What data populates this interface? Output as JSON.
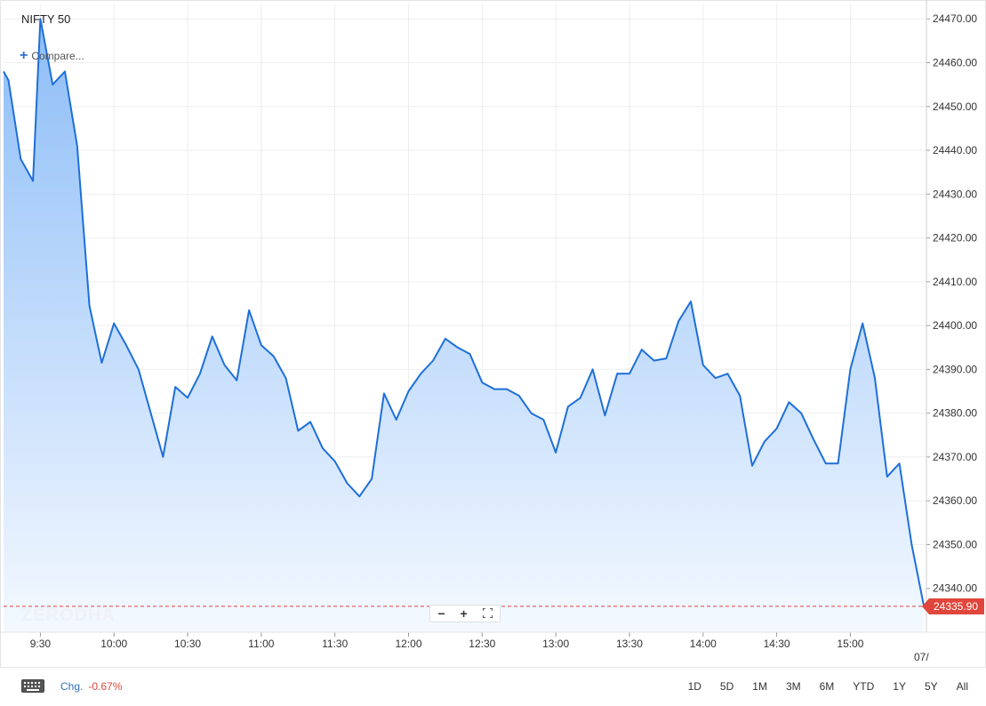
{
  "header": {
    "symbol": "NIFTY 50",
    "compare_label": "Compare..."
  },
  "watermark": "ZERODHA",
  "last_price_label": "24335.90",
  "footer": {
    "chg_label": "Chg.",
    "chg_value": "-0.67%",
    "ranges": [
      "1D",
      "5D",
      "1M",
      "3M",
      "6M",
      "YTD",
      "1Y",
      "5Y",
      "All"
    ]
  },
  "colors": {
    "line": "#1e6fd9",
    "fill_top": "#8dbdf7",
    "fill_bottom": "#f4f9ff",
    "last_price": "#e0463c",
    "grid": "#eeeeee"
  },
  "icons": {
    "keyboard": "keyboard-icon",
    "zoom_out": "minus-icon",
    "zoom_in": "plus-icon",
    "fullscreen": "fullscreen-icon"
  },
  "chart_data": {
    "type": "area",
    "ylim": [
      24330,
      24473.5
    ],
    "y_ticks": [
      24340,
      24350,
      24360,
      24370,
      24380,
      24390,
      24400,
      24410,
      24420,
      24430,
      24440,
      24450,
      24460,
      24470
    ],
    "y_tick_labels": [
      "24340.00",
      "24350.00",
      "24360.00",
      "24370.00",
      "24380.00",
      "24390.00",
      "24400.00",
      "24410.00",
      "24420.00",
      "24430.00",
      "24440.00",
      "24450.00",
      "24460.00",
      "24470.00"
    ],
    "x_unit": "minutes_of_day",
    "xlim": [
      555,
      931
    ],
    "x_ticks": [
      570,
      600,
      630,
      660,
      690,
      720,
      750,
      780,
      810,
      840,
      870,
      900
    ],
    "x_tick_labels": [
      "9:30",
      "10:00",
      "10:30",
      "11:00",
      "11:30",
      "12:00",
      "12:30",
      "13:00",
      "13:30",
      "14:00",
      "14:30",
      "15:00"
    ],
    "x_edge_label": "07/",
    "last_value": 24335.9,
    "grid": true,
    "series": [
      {
        "x": [
          555,
          557,
          562,
          567,
          570,
          575,
          580,
          585,
          590,
          595,
          600,
          605,
          610,
          615,
          620,
          625,
          630,
          635,
          640,
          645,
          650,
          655,
          660,
          665,
          670,
          675,
          680,
          685,
          690,
          695,
          700,
          705,
          710,
          715,
          720,
          725,
          730,
          735,
          740,
          745,
          750,
          755,
          760,
          765,
          770,
          775,
          780,
          785,
          790,
          795,
          800,
          805,
          810,
          815,
          820,
          825,
          830,
          835,
          840,
          845,
          850,
          855,
          860,
          865,
          870,
          875,
          880,
          885,
          890,
          895,
          900,
          905,
          910,
          915,
          920,
          925,
          930
        ],
        "y": [
          24458,
          24456,
          24438,
          24433,
          24470,
          24455,
          24458,
          24441,
          24404.5,
          24391.5,
          24400.5,
          24395.5,
          24390,
          24380,
          24370,
          24386,
          24383.5,
          24389,
          24397.5,
          24391,
          24387.5,
          24403.5,
          24395.5,
          24393,
          24388,
          24376,
          24378,
          24372,
          24369,
          24364,
          24361,
          24365,
          24384.5,
          24378.5,
          24385,
          24389,
          24392,
          24397,
          24395,
          24393.5,
          24387,
          24385.5,
          24385.5,
          24384,
          24380,
          24378.5,
          24371,
          24381.5,
          24383.5,
          24390,
          24379.5,
          24389,
          24389,
          24394.5,
          24392,
          24392.5,
          24401,
          24405.5,
          24391,
          24388,
          24389,
          24384,
          24368,
          24373.5,
          24376.5,
          24382.5,
          24380,
          24374,
          24368.5,
          24368.5,
          24390,
          24400.5,
          24388,
          24365.5,
          24368.5,
          24350,
          24335.9
        ]
      }
    ]
  }
}
